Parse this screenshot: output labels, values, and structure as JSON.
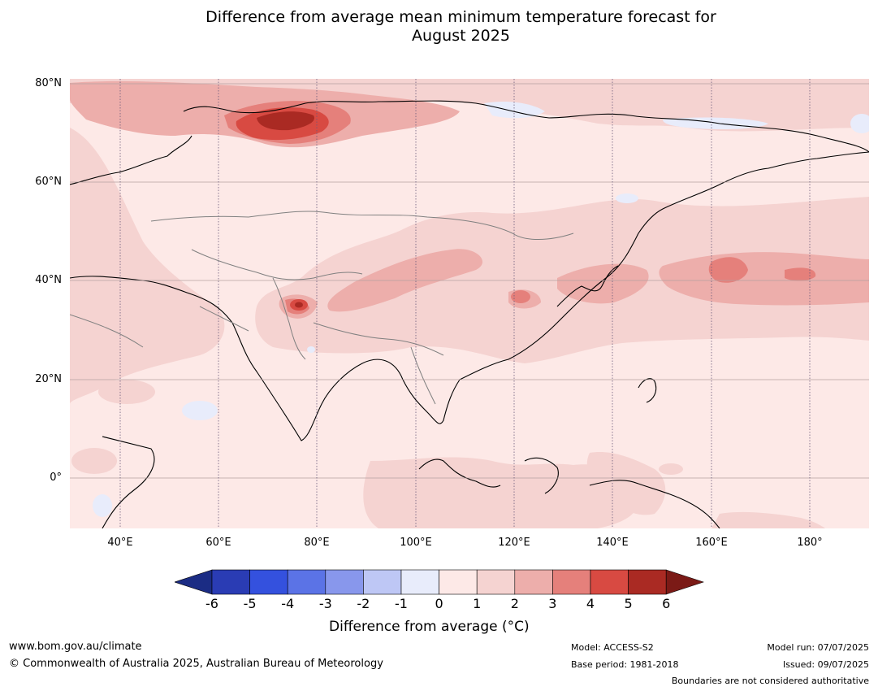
{
  "title": {
    "line1": "Difference from average mean minimum temperature forecast for",
    "line2": "August 2025"
  },
  "map": {
    "lat_labels": [
      "80°N",
      "60°N",
      "40°N",
      "20°N",
      "0°"
    ],
    "lon_labels": [
      "40°E",
      "60°E",
      "80°E",
      "100°E",
      "120°E",
      "140°E",
      "160°E",
      "180°"
    ]
  },
  "colorbar": {
    "ticks": [
      "-6",
      "-5",
      "-4",
      "-3",
      "-2",
      "-1",
      "0",
      "1",
      "2",
      "3",
      "4",
      "5",
      "6"
    ],
    "colors": [
      "#1b2c84",
      "#2a3cb4",
      "#3451de",
      "#5b73e6",
      "#8897ec",
      "#bec7f5",
      "#e8ecfb",
      "#fde9e7",
      "#f5d3d1",
      "#edaeab",
      "#e5807b",
      "#d84a42",
      "#aa2a23",
      "#7b1a16"
    ],
    "label_prefix": "Difference from average (",
    "label_unit": "°C",
    "label_suffix": ")"
  },
  "footer": {
    "website": "www.bom.gov.au/climate",
    "copyright": "© Commonwealth of Australia 2025, Australian Bureau of Meteorology",
    "model": "Model: ACCESS-S2",
    "base_period": "Base period: 1981-2018",
    "model_run": "Model run: 07/07/2025",
    "issued": "Issued: 09/07/2025",
    "disclaimer": "Boundaries are not considered authoritative"
  }
}
